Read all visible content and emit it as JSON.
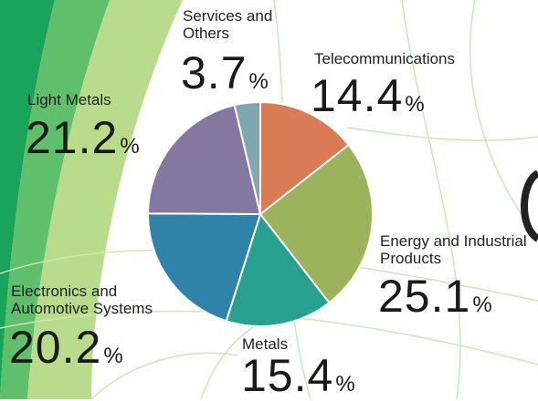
{
  "chart_data": {
    "type": "pie",
    "categories": [
      "Telecommunications",
      "Energy and Industrial Products",
      "Metals",
      "Electronics and Automotive Systems",
      "Light Metals",
      "Services and Others"
    ],
    "values": [
      14.4,
      25.1,
      15.4,
      20.2,
      21.2,
      3.7
    ],
    "unit": "%",
    "colors": [
      "#d97b54",
      "#9bb35a",
      "#26a08f",
      "#2f82a8",
      "#8478a0",
      "#7fa7b0"
    ]
  }
}
